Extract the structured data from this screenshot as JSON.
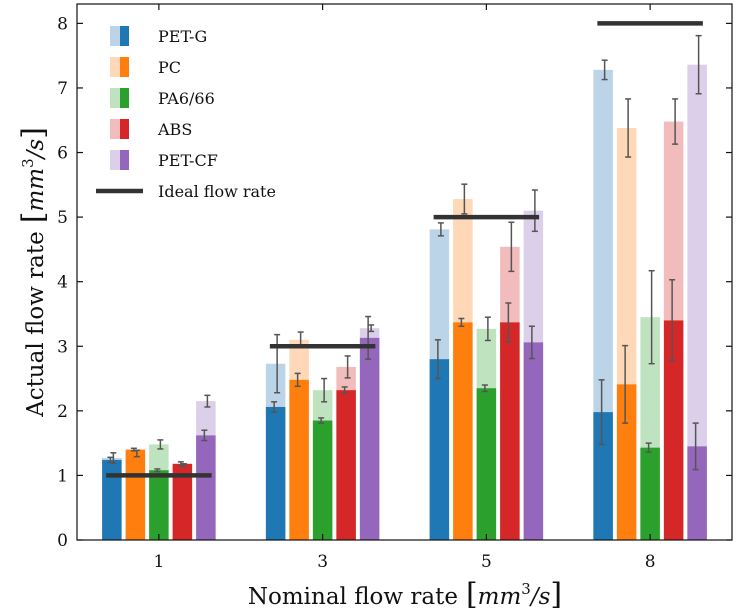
{
  "chart_data": {
    "type": "bar",
    "xlabel_parts": [
      "Nominal flow rate",
      "mm",
      "3",
      "/s"
    ],
    "ylabel_parts": [
      "Actual flow rate",
      "mm",
      "3",
      "/s"
    ],
    "categories": [
      "1",
      "3",
      "5",
      "8"
    ],
    "ylim": [
      0,
      8.3
    ],
    "yticks": [
      "0",
      "1",
      "2",
      "3",
      "4",
      "5",
      "6",
      "7",
      "8"
    ],
    "grid": false,
    "legend_position": "top-left",
    "ideal": {
      "name": "Ideal flow rate",
      "color": "#333333",
      "values": [
        1,
        3,
        5,
        8
      ]
    },
    "series": [
      {
        "name": "PET-G",
        "color": "#1f77b4",
        "light_color": "#bcd4e8",
        "solid": [
          1.24,
          2.06,
          2.8,
          1.98
        ],
        "solid_err": [
          0.04,
          0.08,
          0.3,
          0.5
        ],
        "light": [
          1.27,
          2.73,
          4.81,
          7.28
        ],
        "light_err": [
          0.08,
          0.45,
          0.1,
          0.15
        ]
      },
      {
        "name": "PC",
        "color": "#ff7f0e",
        "light_color": "#ffd8b8",
        "solid": [
          1.4,
          2.48,
          3.37,
          2.41
        ],
        "solid_err": [
          0.02,
          0.1,
          0.06,
          0.6
        ],
        "light": [
          1.34,
          3.1,
          5.28,
          6.38
        ],
        "light_err": [
          0.05,
          0.12,
          0.23,
          0.45
        ]
      },
      {
        "name": "PA6/66",
        "color": "#2ca02c",
        "light_color": "#bfe3bf",
        "solid": [
          1.08,
          1.85,
          2.35,
          1.43
        ],
        "solid_err": [
          0.02,
          0.04,
          0.05,
          0.07
        ],
        "light": [
          1.48,
          2.32,
          3.27,
          3.45
        ],
        "light_err": [
          0.07,
          0.18,
          0.18,
          0.72
        ]
      },
      {
        "name": "ABS",
        "color": "#d62728",
        "light_color": "#f2bcbc",
        "solid": [
          1.18,
          2.32,
          3.37,
          3.4
        ],
        "solid_err": [
          0.03,
          0.05,
          0.3,
          0.63
        ],
        "light": [
          1.16,
          2.68,
          4.54,
          6.48
        ],
        "light_err": [
          0.02,
          0.17,
          0.38,
          0.35
        ]
      },
      {
        "name": "PET-CF",
        "color": "#9467bd",
        "light_color": "#dccfe9",
        "solid": [
          1.62,
          3.13,
          3.06,
          1.45
        ],
        "solid_err": [
          0.08,
          0.33,
          0.25,
          0.36
        ],
        "light": [
          2.15,
          3.28,
          5.1,
          7.36
        ],
        "light_err": [
          0.09,
          0.05,
          0.32,
          0.45
        ]
      }
    ]
  }
}
